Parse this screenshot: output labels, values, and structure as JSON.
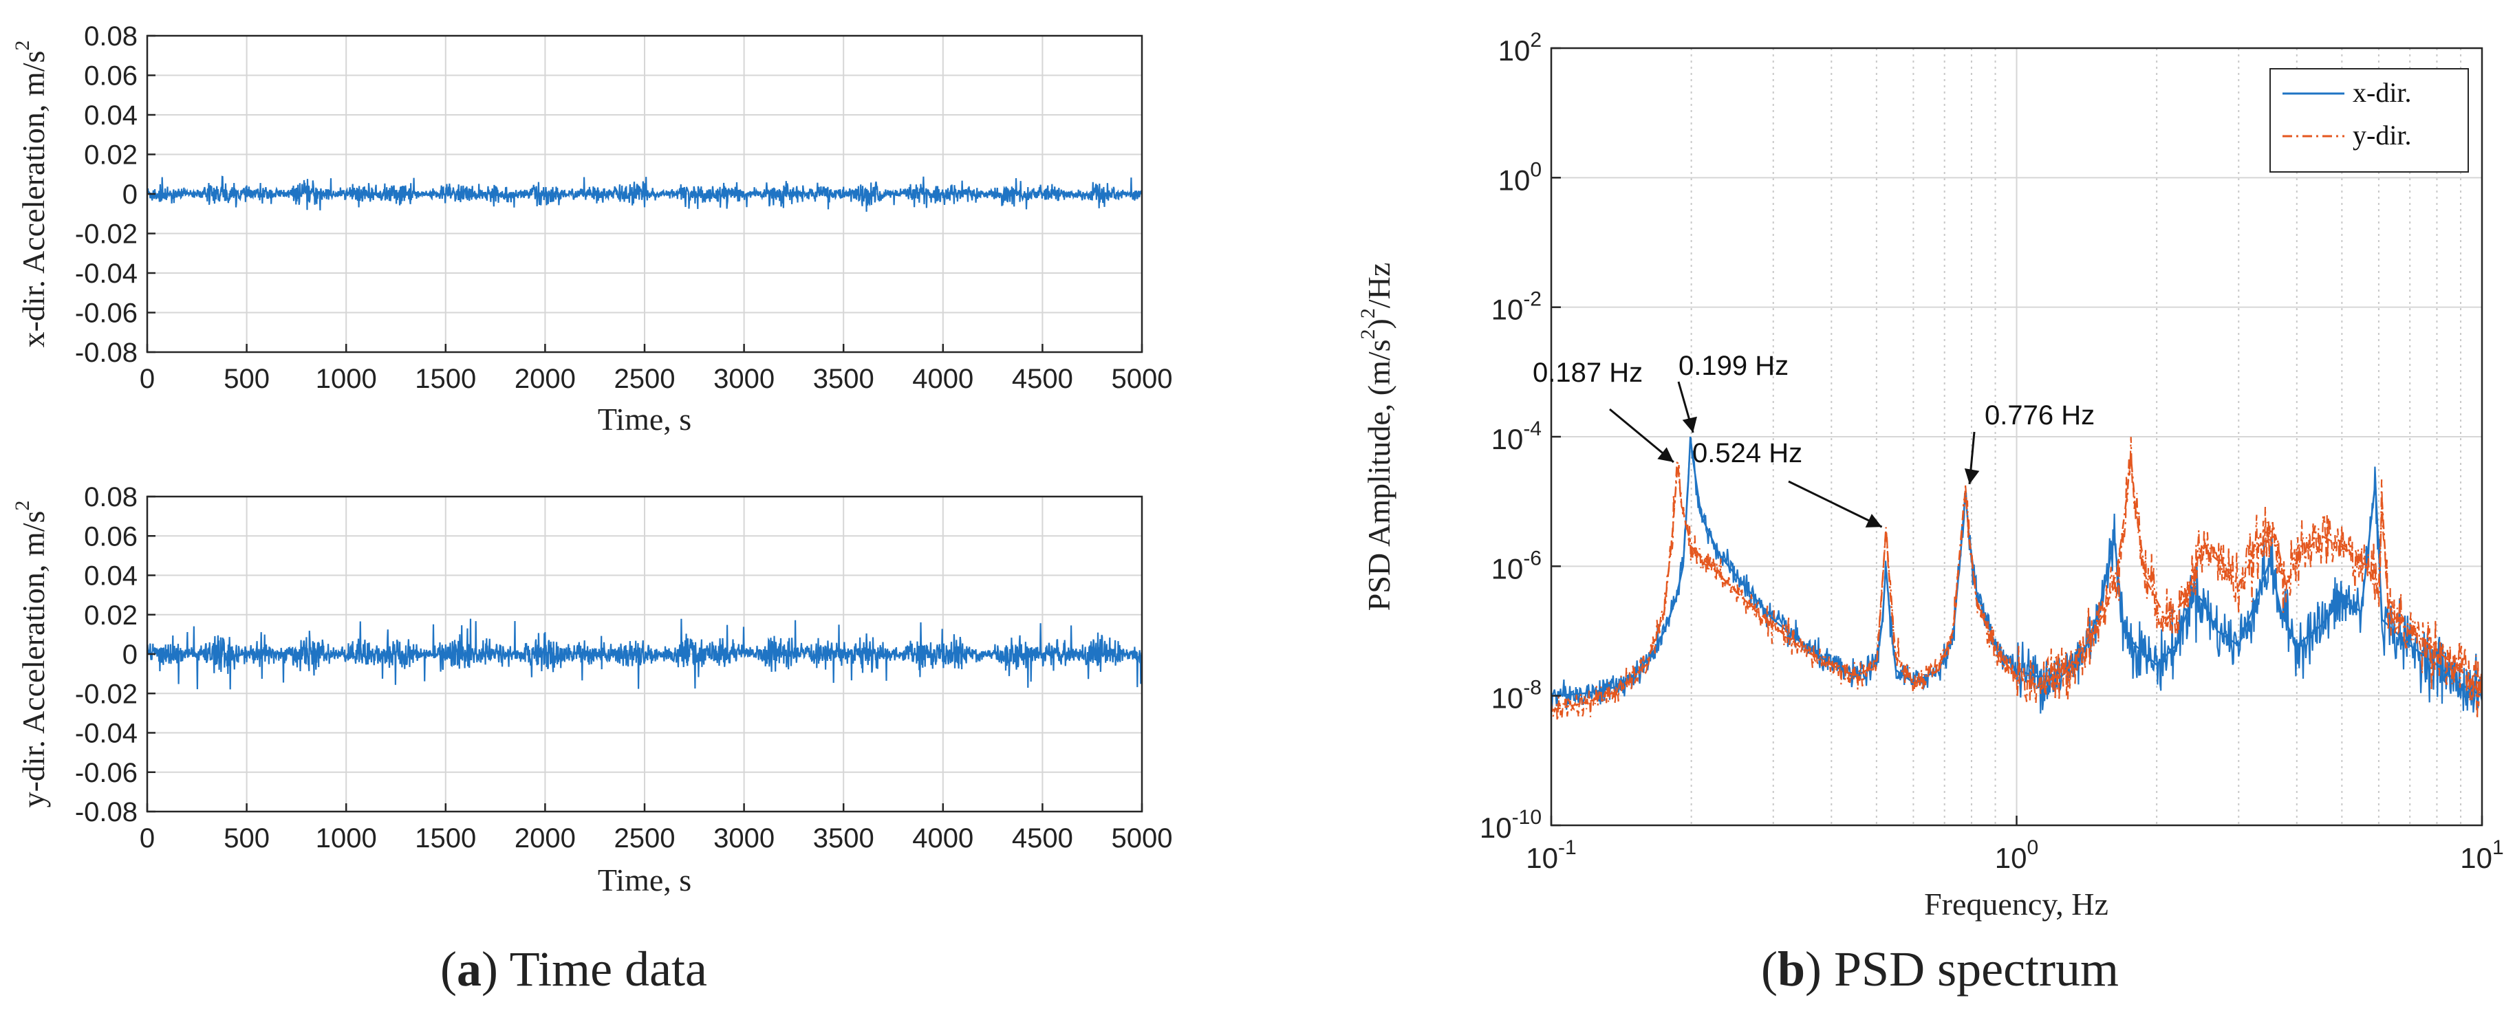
{
  "colors": {
    "x_dir": "#1F74C4",
    "y_dir": "#E4571F",
    "grid": "#D6D6D6",
    "axis": "#262626"
  },
  "chart_data": [
    {
      "id": "time-x",
      "type": "line",
      "title": "",
      "xlabel": "Time, s",
      "ylabel_main": "x-dir. Acceleration, m/s",
      "ylabel_sup": "2",
      "xlim": [
        0,
        5000
      ],
      "ylim": [
        -0.08,
        0.08
      ],
      "xticks": [
        0,
        500,
        1000,
        1500,
        2000,
        2500,
        3000,
        3500,
        4000,
        4500,
        5000
      ],
      "xtick_labels": [
        "0",
        "500",
        "1000",
        "1500",
        "2000",
        "2500",
        "3000",
        "3500",
        "4000",
        "4500",
        "5000"
      ],
      "yticks": [
        0.08,
        0.06,
        0.04,
        0.02,
        0,
        -0.02,
        -0.04,
        -0.06,
        -0.08
      ],
      "ytick_labels": [
        "0.08",
        "0.06",
        "0.04",
        "0.02",
        "0",
        "-0.02",
        "-0.04",
        "-0.06",
        "-0.08"
      ],
      "grid": true,
      "series": [
        {
          "name": "x-dir.",
          "mean": 0.0,
          "amplitude": 0.004,
          "peak": 0.009
        }
      ]
    },
    {
      "id": "time-y",
      "type": "line",
      "title": "",
      "xlabel": "Time, s",
      "ylabel_main": "y-dir. Acceleration, m/s",
      "ylabel_sup": "2",
      "xlim": [
        0,
        5000
      ],
      "ylim": [
        -0.08,
        0.08
      ],
      "xticks": [
        0,
        500,
        1000,
        1500,
        2000,
        2500,
        3000,
        3500,
        4000,
        4500,
        5000
      ],
      "xtick_labels": [
        "0",
        "500",
        "1000",
        "1500",
        "2000",
        "2500",
        "3000",
        "3500",
        "4000",
        "4500",
        "5000"
      ],
      "yticks": [
        0.08,
        0.06,
        0.04,
        0.02,
        0,
        -0.02,
        -0.04,
        -0.06,
        -0.08
      ],
      "ytick_labels": [
        "0.08",
        "0.06",
        "0.04",
        "0.02",
        "0",
        "-0.02",
        "-0.04",
        "-0.06",
        "-0.08"
      ],
      "grid": true,
      "series": [
        {
          "name": "y-dir.",
          "mean": 0.0,
          "amplitude": 0.006,
          "peak": 0.018
        }
      ]
    },
    {
      "id": "psd",
      "type": "line",
      "title": "",
      "xlabel": "Frequency, Hz",
      "ylabel_main": "PSD Amplitude, (m/s",
      "ylabel_sup": "2",
      "ylabel_mid": ")",
      "ylabel_sup2": "2",
      "ylabel_end": "/Hz",
      "xscale": "log",
      "yscale": "log",
      "xlim": [
        0.1,
        10
      ],
      "ylim": [
        1e-10,
        100
      ],
      "xticks": [
        {
          "base": "10",
          "exp": "-1",
          "value": 0.1
        },
        {
          "base": "10",
          "exp": "0",
          "value": 1
        },
        {
          "base": "10",
          "exp": "1",
          "value": 10
        }
      ],
      "yticks": [
        {
          "base": "10",
          "exp": "2",
          "value": 100
        },
        {
          "base": "10",
          "exp": "0",
          "value": 1
        },
        {
          "base": "10",
          "exp": "-2",
          "value": 0.01
        },
        {
          "base": "10",
          "exp": "-4",
          "value": 0.0001
        },
        {
          "base": "10",
          "exp": "-6",
          "value": 1e-06
        },
        {
          "base": "10",
          "exp": "-8",
          "value": 1e-08
        },
        {
          "base": "10",
          "exp": "-10",
          "value": 1e-10
        }
      ],
      "legend": {
        "location": "top-right",
        "entries": [
          "x-dir.",
          "y-dir."
        ]
      },
      "grid": true,
      "series": [
        {
          "name": "x-dir.",
          "style": "solid",
          "points": [
            [
              0.1,
              1e-08
            ],
            [
              0.12,
              1.1e-08
            ],
            [
              0.14,
              1.4e-08
            ],
            [
              0.16,
              3e-08
            ],
            [
              0.175,
              1e-07
            ],
            [
              0.185,
              3e-07
            ],
            [
              0.192,
              1e-06
            ],
            [
              0.197,
              2e-05
            ],
            [
              0.199,
              0.0001
            ],
            [
              0.202,
              4e-05
            ],
            [
              0.21,
              6e-06
            ],
            [
              0.23,
              1.5e-06
            ],
            [
              0.26,
              5e-07
            ],
            [
              0.3,
              1.5e-07
            ],
            [
              0.35,
              6e-08
            ],
            [
              0.4,
              3e-08
            ],
            [
              0.45,
              2e-08
            ],
            [
              0.5,
              3e-08
            ],
            [
              0.515,
              1.5e-07
            ],
            [
              0.524,
              1e-06
            ],
            [
              0.535,
              1.5e-07
            ],
            [
              0.55,
              2.5e-08
            ],
            [
              0.6,
              1.6e-08
            ],
            [
              0.68,
              2.5e-08
            ],
            [
              0.73,
              8e-08
            ],
            [
              0.76,
              2e-06
            ],
            [
              0.776,
              1.4e-05
            ],
            [
              0.79,
              3e-06
            ],
            [
              0.82,
              4e-07
            ],
            [
              0.9,
              6e-08
            ],
            [
              1.0,
              2.5e-08
            ],
            [
              1.1,
              2e-08
            ],
            [
              1.25,
              2e-08
            ],
            [
              1.4,
              5e-08
            ],
            [
              1.5,
              2e-07
            ],
            [
              1.58,
              1e-06
            ],
            [
              1.62,
              3e-06
            ],
            [
              1.7,
              1e-07
            ],
            [
              1.8,
              6e-08
            ],
            [
              2.0,
              3e-08
            ],
            [
              2.2,
              6e-08
            ],
            [
              2.4,
              4e-07
            ],
            [
              2.5,
              3e-07
            ],
            [
              2.7,
              1e-07
            ],
            [
              3.0,
              6e-08
            ],
            [
              3.2,
              2e-07
            ],
            [
              3.5,
              1.2e-06
            ],
            [
              3.7,
              2e-07
            ],
            [
              4.0,
              6e-08
            ],
            [
              4.5,
              1.2e-07
            ],
            [
              5.0,
              3e-07
            ],
            [
              5.5,
              2e-07
            ],
            [
              5.9,
              2e-05
            ],
            [
              6.1,
              1.5e-07
            ],
            [
              7.0,
              6e-08
            ],
            [
              8.0,
              3e-08
            ],
            [
              9.0,
              1.5e-08
            ],
            [
              10.0,
              1e-08
            ]
          ]
        },
        {
          "name": "y-dir.",
          "style": "dash-dot",
          "points": [
            [
              0.1,
              6e-09
            ],
            [
              0.12,
              8e-09
            ],
            [
              0.14,
              1.2e-08
            ],
            [
              0.16,
              3e-08
            ],
            [
              0.175,
              2e-07
            ],
            [
              0.182,
              3e-06
            ],
            [
              0.187,
              4e-05
            ],
            [
              0.19,
              1e-05
            ],
            [
              0.2,
              2e-06
            ],
            [
              0.22,
              1e-06
            ],
            [
              0.25,
              4e-07
            ],
            [
              0.3,
              1.2e-07
            ],
            [
              0.35,
              5e-08
            ],
            [
              0.4,
              3e-08
            ],
            [
              0.45,
              2e-08
            ],
            [
              0.5,
              3e-08
            ],
            [
              0.512,
              3e-07
            ],
            [
              0.524,
              4e-06
            ],
            [
              0.535,
              4e-07
            ],
            [
              0.55,
              4e-08
            ],
            [
              0.6,
              1.5e-08
            ],
            [
              0.68,
              2.5e-08
            ],
            [
              0.73,
              1e-07
            ],
            [
              0.76,
              3e-06
            ],
            [
              0.776,
              1.5e-05
            ],
            [
              0.79,
              3e-06
            ],
            [
              0.82,
              3e-07
            ],
            [
              0.9,
              5e-08
            ],
            [
              1.0,
              2e-08
            ],
            [
              1.1,
              1.5e-08
            ],
            [
              1.25,
              2e-08
            ],
            [
              1.4,
              6e-08
            ],
            [
              1.55,
              2e-07
            ],
            [
              1.65,
              1e-06
            ],
            [
              1.72,
              1e-05
            ],
            [
              1.76,
              5e-05
            ],
            [
              1.8,
              8e-06
            ],
            [
              1.9,
              6e-07
            ],
            [
              2.1,
              1.5e-07
            ],
            [
              2.3,
              3e-07
            ],
            [
              2.5,
              2e-06
            ],
            [
              2.8,
              1e-06
            ],
            [
              3.0,
              5e-07
            ],
            [
              3.3,
              2e-06
            ],
            [
              3.6,
              3e-06
            ],
            [
              3.8,
              5e-07
            ],
            [
              4.0,
              1.2e-06
            ],
            [
              4.5,
              3e-06
            ],
            [
              5.0,
              2e-06
            ],
            [
              5.5,
              1.2e-06
            ],
            [
              6.0,
              5e-07
            ],
            [
              6.1,
              1e-05
            ],
            [
              6.3,
              2e-07
            ],
            [
              7.0,
              1e-07
            ],
            [
              8.0,
              5e-08
            ],
            [
              9.0,
              2.5e-08
            ],
            [
              10.0,
              1e-08
            ]
          ]
        }
      ],
      "annotations": [
        {
          "text": "0.187 Hz",
          "x": 0.187,
          "y": 3.5e-05
        },
        {
          "text": "0.199 Hz",
          "x": 0.199,
          "y": 0.0001
        },
        {
          "text": "0.524 Hz",
          "x": 0.524,
          "y": 3.5e-06
        },
        {
          "text": "0.776 Hz",
          "x": 0.776,
          "y": 1.6e-05
        }
      ]
    }
  ],
  "captions": [
    {
      "label": "a",
      "text": " Time data"
    },
    {
      "label": "b",
      "text": " PSD spectrum"
    }
  ]
}
